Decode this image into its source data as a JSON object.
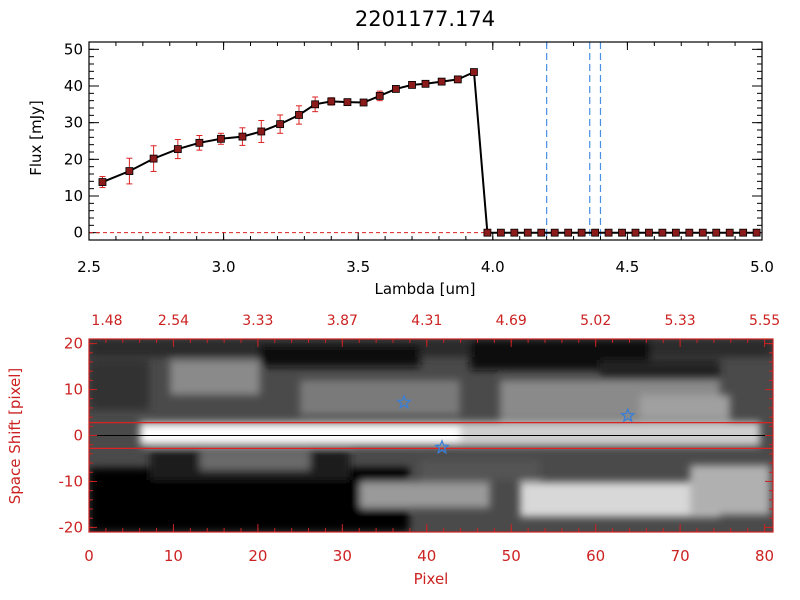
{
  "chart_data": [
    {
      "type": "line",
      "title": "2201177.174",
      "xlabel": "Lambda [um]",
      "ylabel": "Flux [mJy]",
      "xlim": [
        2.5,
        5.0
      ],
      "ylim": [
        -2,
        52
      ],
      "xticks": [
        "2.5",
        "3.0",
        "3.5",
        "4.0",
        "4.5",
        "5.0"
      ],
      "yticks": [
        "0",
        "10",
        "20",
        "30",
        "40",
        "50"
      ],
      "series": [
        {
          "name": "flux",
          "x": [
            2.55,
            2.65,
            2.74,
            2.83,
            2.91,
            2.99,
            3.07,
            3.14,
            3.21,
            3.28,
            3.34,
            3.4,
            3.46,
            3.52,
            3.58,
            3.64,
            3.7,
            3.75,
            3.81,
            3.87,
            3.93,
            3.98,
            4.03,
            4.08,
            4.13,
            4.18,
            4.23,
            4.28,
            4.33,
            4.38,
            4.43,
            4.48,
            4.53,
            4.58,
            4.63,
            4.68,
            4.73,
            4.78,
            4.83,
            4.88,
            4.93,
            4.98
          ],
          "y": [
            13.8,
            16.8,
            20.2,
            22.8,
            24.5,
            25.6,
            26.2,
            27.6,
            29.6,
            32.1,
            35.0,
            35.8,
            35.6,
            35.5,
            37.3,
            39.2,
            40.3,
            40.6,
            41.2,
            41.8,
            43.8,
            0,
            0,
            0,
            0,
            0,
            0,
            0,
            0,
            0,
            0,
            0,
            0,
            0,
            0,
            0,
            0,
            0,
            0,
            0,
            0,
            0
          ],
          "yerr": [
            1.5,
            3.5,
            3.5,
            2.6,
            2.0,
            1.5,
            2.4,
            3.0,
            2.5,
            2.5,
            2.0,
            1.0,
            0.8,
            0.8,
            1.3,
            0.8,
            0.8,
            0.8,
            0.8,
            0.8,
            0.8,
            0,
            0,
            0,
            0,
            0,
            0,
            0,
            0,
            0,
            0,
            0,
            0,
            0,
            0,
            0,
            0,
            0,
            0,
            0,
            0,
            0
          ]
        }
      ],
      "vlines": [
        4.2,
        4.36,
        4.4
      ],
      "colors": {
        "line": "#000000",
        "marker": "#8b1a1a",
        "error": "#dd2222",
        "vline": "#4a90e2"
      }
    },
    {
      "type": "heatmap",
      "xlabel": "Pixel",
      "ylabel": "Space Shift [pixel]",
      "xlim": [
        0,
        81
      ],
      "ylim": [
        -21,
        21
      ],
      "xticks": [
        "0",
        "10",
        "20",
        "30",
        "40",
        "50",
        "60",
        "70",
        "80"
      ],
      "yticks": [
        "-20",
        "-10",
        "0",
        "10",
        "20"
      ],
      "top_axis_label_values": [
        "1.48",
        "2.54",
        "3.33",
        "3.87",
        "4.31",
        "4.69",
        "5.02",
        "5.33",
        "5.55"
      ],
      "extraction_band": [
        -2.8,
        2.8
      ],
      "center_line": 0,
      "markers": [
        {
          "x": 37.3,
          "y": 7.2
        },
        {
          "x": 41.8,
          "y": -2.6
        },
        {
          "x": 63.8,
          "y": 4.3
        }
      ],
      "colors": {
        "axis": "#cc2222",
        "band": "#dd2222",
        "marker": "#3a7fd6"
      }
    }
  ]
}
